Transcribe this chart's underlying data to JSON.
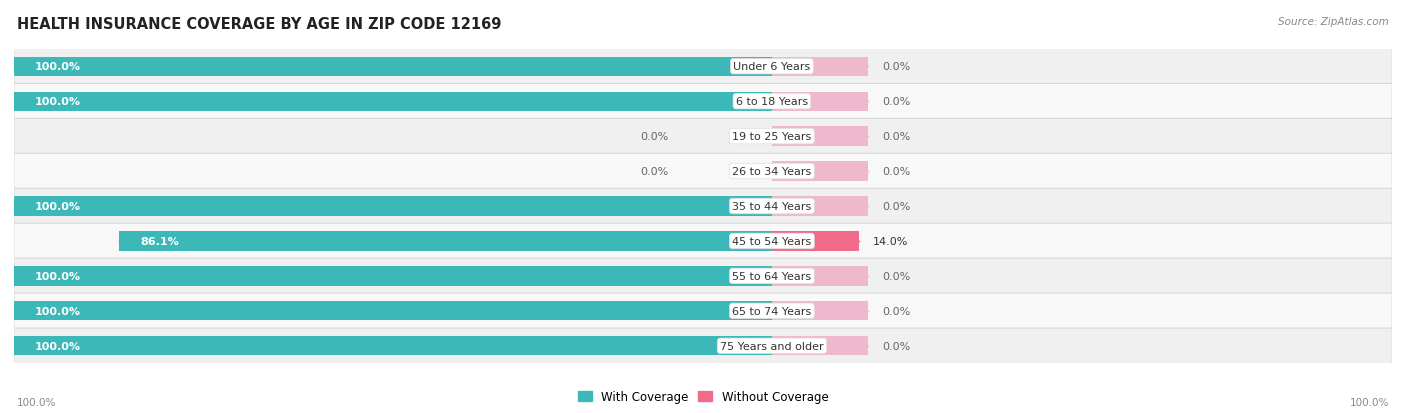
{
  "title": "HEALTH INSURANCE COVERAGE BY AGE IN ZIP CODE 12169",
  "source": "Source: ZipAtlas.com",
  "categories": [
    "Under 6 Years",
    "6 to 18 Years",
    "19 to 25 Years",
    "26 to 34 Years",
    "35 to 44 Years",
    "45 to 54 Years",
    "55 to 64 Years",
    "65 to 74 Years",
    "75 Years and older"
  ],
  "with_coverage": [
    100.0,
    100.0,
    0.0,
    0.0,
    100.0,
    86.1,
    100.0,
    100.0,
    100.0
  ],
  "without_coverage": [
    0.0,
    0.0,
    0.0,
    0.0,
    0.0,
    14.0,
    0.0,
    0.0,
    0.0
  ],
  "color_with": "#3db8b8",
  "color_without_large": "#f06a8a",
  "color_without_small": "#f0b8cc",
  "bg_row_alt": "#f0f0f0",
  "bg_row_norm": "#f8f8f8",
  "title_fontsize": 10.5,
  "label_fontsize": 8.0,
  "source_fontsize": 7.5,
  "legend_fontsize": 8.5,
  "footer_fontsize": 7.5
}
